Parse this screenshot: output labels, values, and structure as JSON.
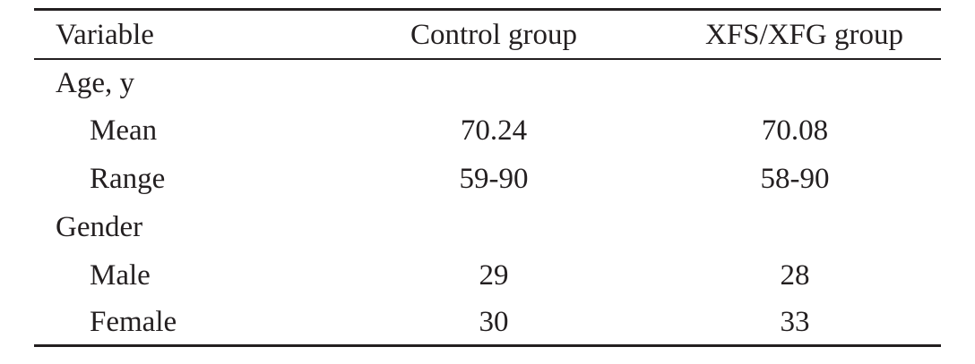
{
  "table": {
    "header": [
      "Variable",
      "Control group",
      "XFS/XFG group"
    ],
    "rows": [
      {
        "label": "Age, y"
      },
      {
        "label": "Mean",
        "cells": [
          70.24,
          70.08
        ]
      },
      {
        "label": "Range",
        "cells": [
          "59-90",
          "58-90"
        ]
      },
      {
        "label": "Gender"
      },
      {
        "label": "Male",
        "cells": [
          29,
          28
        ]
      },
      {
        "label": "Female",
        "cells": [
          30,
          33
        ]
      }
    ]
  }
}
